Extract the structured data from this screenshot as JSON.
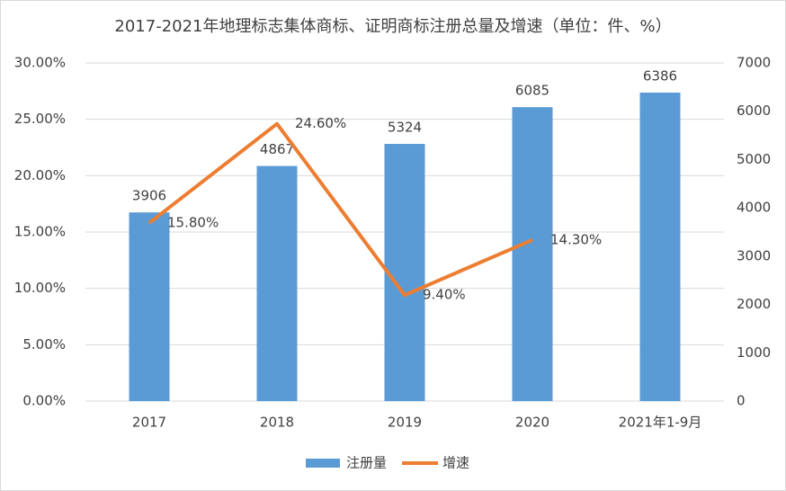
{
  "chart_data": {
    "type": "bar",
    "title": "2017-2021年地理标志集体商标、证明商标注册总量及增速（单位：件、%）",
    "categories": [
      "2017",
      "2018",
      "2019",
      "2020",
      "2021年1-9月"
    ],
    "series": [
      {
        "name": "注册量",
        "color": "#5b9bd5",
        "axis": "y2",
        "values": [
          3906,
          4867,
          5324,
          6085,
          6386
        ]
      },
      {
        "name": "增速",
        "color": "#ed7d31",
        "type": "line",
        "values": [
          15.8,
          24.6,
          9.4,
          14.3,
          null
        ],
        "value_labels": [
          "15.80%",
          "24.60%",
          "9.40%",
          "14.30%",
          null
        ]
      }
    ],
    "ylim": [
      0,
      30
    ],
    "yticks": [
      {
        "value": 0,
        "label": "0.00%"
      },
      {
        "value": 5,
        "label": "5.00%"
      },
      {
        "value": 10,
        "label": "10.00%"
      },
      {
        "value": 15,
        "label": "15.00%"
      },
      {
        "value": 20,
        "label": "20.00%"
      },
      {
        "value": 25,
        "label": "25.00%"
      },
      {
        "value": 30,
        "label": "30.00%"
      }
    ],
    "y2lim": [
      0,
      7000
    ],
    "y2ticks": [
      0,
      1000,
      2000,
      3000,
      4000,
      5000,
      6000,
      7000
    ],
    "grid": true,
    "legend": "bottom"
  }
}
